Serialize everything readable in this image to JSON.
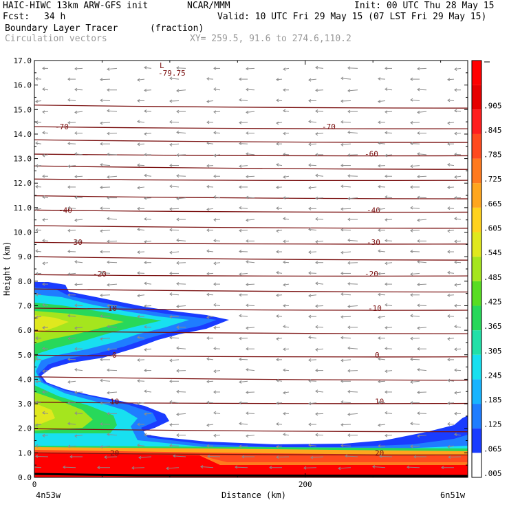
{
  "header": {
    "model": "HAIC-HIWC 13km ARW-GFS init",
    "org": "NCAR/MMM",
    "init": "Init: 00 UTC Thu 28 May 15",
    "fcst_label": "Fcst:",
    "fcst_value": "34 h",
    "valid": "Valid: 10 UTC Fri 29 May 15 (07 LST Fri 29 May 15)",
    "field1": "Boundary Layer Tracer",
    "field1_units": "(fraction)",
    "field2": "Circulation vectors",
    "xy": "XY= 259.5, 91.6 to 274.6,110.2"
  },
  "colors": {
    "contour": "#7a1010",
    "vector": "#8c8c8c"
  },
  "chart_data": {
    "type": "heatmap",
    "ylabel": "Height (km)",
    "xlabel": "Distance (km)",
    "x_left_label": "4n53w",
    "x_right_label": "6n51w",
    "xlim": [
      0,
      320
    ],
    "ylim": [
      0,
      17
    ],
    "x_ticks": [
      0,
      200
    ],
    "y_ticks": [
      "0.0",
      "1.0",
      "2.0",
      "3.0",
      "4.0",
      "5.0",
      "6.0",
      "7.0",
      "8.0",
      "9.0",
      "10.0",
      "11.0",
      "12.0",
      "13.0",
      "14.0",
      "15.0",
      "16.0",
      "17.0"
    ],
    "colorbar_labels": [
      ".005",
      ".065",
      ".125",
      ".185",
      ".245",
      ".305",
      ".365",
      ".425",
      ".485",
      ".545",
      ".605",
      ".665",
      ".725",
      ".785",
      ".845",
      ".905"
    ],
    "colorbar_colors": [
      "#ffffff",
      "#1a3cff",
      "#1f7dff",
      "#18b4ff",
      "#18e0f0",
      "#22e0a8",
      "#28d85a",
      "#58dd22",
      "#a5e51e",
      "#e0e81e",
      "#ffd21e",
      "#ffa61e",
      "#ff7a1e",
      "#ff4a1e",
      "#ff1e1e",
      "#e60000",
      "#ff0000"
    ],
    "contours": [
      {
        "label": "20",
        "height": 1.0
      },
      {
        "label": "10",
        "height": 3.1
      },
      {
        "label": "0",
        "height": 5.0
      },
      {
        "label": "-10",
        "height": 6.9
      },
      {
        "label": "-20",
        "height": 8.3
      },
      {
        "label": "-30",
        "height": 9.6
      },
      {
        "label": "-40",
        "height": 10.9
      },
      {
        "label": "-60",
        "height": 13.2
      },
      {
        "label": "-70",
        "height": 14.3
      }
    ],
    "extrema": {
      "label": "L",
      "value": "-79.75"
    }
  }
}
